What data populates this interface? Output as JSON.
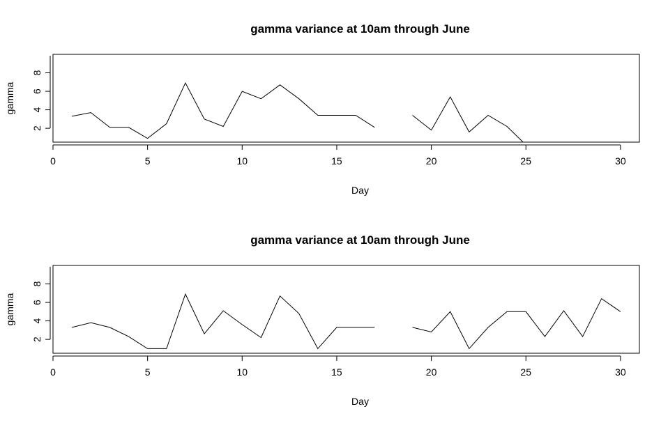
{
  "chart_data": [
    {
      "type": "line",
      "title": "gamma variance at 10am through June",
      "xlabel": "Day",
      "ylabel": "gamma",
      "xlim": [
        0,
        31
      ],
      "ylim": [
        0.5,
        10
      ],
      "xticks": [
        "0",
        "5",
        "10",
        "15",
        "20",
        "25",
        "30"
      ],
      "yticks": [
        "2",
        "4",
        "6",
        "8"
      ],
      "grid": false,
      "x": [
        1,
        2,
        3,
        4,
        5,
        6,
        7,
        8,
        9,
        10,
        11,
        12,
        13,
        14,
        15,
        16,
        17,
        18,
        19,
        20,
        21,
        22,
        23,
        24,
        25,
        26,
        27,
        28,
        29,
        30
      ],
      "values": [
        3.3,
        3.7,
        2.1,
        2.1,
        0.9,
        2.5,
        6.9,
        3.0,
        2.2,
        6.0,
        5.2,
        6.7,
        5.2,
        3.4,
        3.4,
        3.4,
        2.1,
        null,
        3.4,
        1.8,
        5.4,
        1.6,
        3.4,
        2.2,
        0.2,
        null,
        null,
        null,
        null,
        null
      ]
    },
    {
      "type": "line",
      "title": "gamma variance at 10am through June",
      "xlabel": "Day",
      "ylabel": "gamma",
      "xlim": [
        0,
        31
      ],
      "ylim": [
        0.5,
        10
      ],
      "xticks": [
        "0",
        "5",
        "10",
        "15",
        "20",
        "25",
        "30"
      ],
      "yticks": [
        "2",
        "4",
        "6",
        "8"
      ],
      "grid": false,
      "x": [
        1,
        2,
        3,
        4,
        5,
        6,
        7,
        8,
        9,
        10,
        11,
        12,
        13,
        14,
        15,
        16,
        17,
        18,
        19,
        20,
        21,
        22,
        23,
        24,
        25,
        26,
        27,
        28,
        29,
        30
      ],
      "values": [
        3.3,
        3.8,
        3.3,
        2.3,
        1.0,
        1.0,
        6.9,
        2.6,
        5.1,
        3.6,
        2.2,
        6.7,
        4.8,
        1.0,
        3.3,
        3.3,
        3.3,
        null,
        3.3,
        2.8,
        5.0,
        1.0,
        3.3,
        5.0,
        5.0,
        2.3,
        5.1,
        2.3,
        6.4,
        5.0
      ]
    }
  ]
}
